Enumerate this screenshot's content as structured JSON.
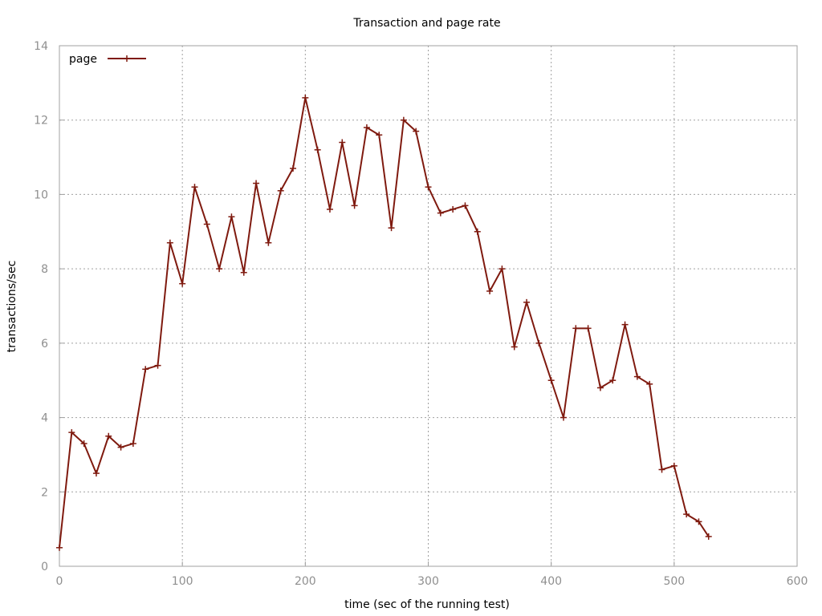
{
  "chart_data": {
    "type": "line",
    "title": "Transaction and page rate",
    "xlabel": "time (sec of the running test)",
    "ylabel": "transactions/sec",
    "xlim": [
      0,
      600
    ],
    "ylim": [
      0,
      14
    ],
    "xticks": [
      0,
      100,
      200,
      300,
      400,
      500,
      600
    ],
    "yticks": [
      0,
      2,
      4,
      6,
      8,
      10,
      12,
      14
    ],
    "grid": true,
    "legend_position": "top-left",
    "series": [
      {
        "name": "page",
        "color": "#7f1a0f",
        "marker": "plus",
        "x": [
          0,
          10,
          20,
          30,
          40,
          50,
          60,
          70,
          80,
          90,
          100,
          110,
          120,
          130,
          140,
          150,
          160,
          170,
          180,
          190,
          200,
          210,
          220,
          230,
          240,
          250,
          260,
          270,
          280,
          290,
          300,
          310,
          320,
          330,
          340,
          350,
          360,
          370,
          380,
          390,
          400,
          410,
          420,
          430,
          440,
          450,
          460,
          470,
          480,
          490,
          500,
          510,
          520,
          528
        ],
        "y": [
          0.5,
          3.6,
          3.3,
          2.5,
          3.5,
          3.2,
          3.3,
          5.3,
          5.4,
          8.7,
          7.6,
          10.2,
          9.2,
          8.0,
          9.4,
          7.9,
          10.3,
          8.7,
          10.1,
          10.7,
          12.6,
          11.2,
          9.6,
          11.4,
          9.7,
          11.8,
          11.6,
          9.1,
          12.0,
          11.7,
          10.2,
          9.5,
          9.6,
          9.7,
          9.0,
          7.4,
          8.0,
          5.9,
          7.1,
          6.0,
          5.0,
          4.0,
          6.4,
          6.4,
          4.8,
          5.0,
          6.5,
          5.1,
          4.9,
          2.6,
          2.7,
          1.4,
          1.2,
          0.8
        ]
      }
    ]
  }
}
